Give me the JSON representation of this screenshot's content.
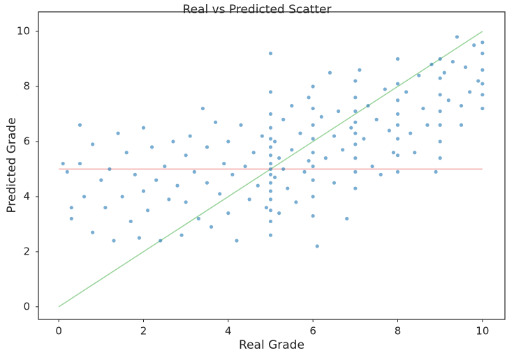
{
  "chart_data": {
    "type": "scatter",
    "title": "Real vs Predicted Scatter",
    "x_label": "Real Grade",
    "y_label": "Predicted Grade",
    "xlim": [
      -0.48,
      10.53
    ],
    "ylim": [
      -0.46,
      10.71
    ],
    "xticks": [
      0,
      2,
      4,
      6,
      8,
      10
    ],
    "yticks": [
      0,
      2,
      4,
      6,
      8,
      10
    ],
    "points": {
      "color": "#1f77b4",
      "x": [
        0.1,
        0.2,
        0.3,
        0.3,
        0.5,
        0.5,
        0.6,
        0.8,
        0.8,
        1.0,
        1.1,
        1.2,
        1.3,
        1.4,
        1.5,
        1.6,
        1.7,
        1.8,
        1.9,
        2.0,
        2.0,
        2.1,
        2.2,
        2.3,
        2.4,
        2.5,
        2.6,
        2.7,
        2.8,
        2.9,
        3.0,
        3.0,
        3.1,
        3.2,
        3.3,
        3.4,
        3.5,
        3.5,
        3.6,
        3.7,
        3.8,
        3.9,
        4.0,
        4.0,
        4.1,
        4.2,
        4.3,
        4.4,
        4.5,
        4.6,
        4.7,
        4.8,
        4.9,
        5,
        5,
        5,
        5,
        5,
        5,
        5,
        5,
        5,
        5,
        5,
        5,
        5,
        5,
        5,
        5,
        5.1,
        5.1,
        5.2,
        5.2,
        5.3,
        5.3,
        5.4,
        5.5,
        5.5,
        5.6,
        5.7,
        5.8,
        5.9,
        5.9,
        6,
        6,
        6,
        6,
        6,
        6,
        6,
        6,
        6,
        6.1,
        6.2,
        6.3,
        6.4,
        6.5,
        6.5,
        6.6,
        6.7,
        6.8,
        6.9,
        7,
        7,
        7,
        7,
        7,
        7,
        7,
        7,
        7,
        7.1,
        7.2,
        7.3,
        7.4,
        7.5,
        7.6,
        7.7,
        7.8,
        7.9,
        8,
        8,
        8,
        8,
        8,
        8,
        8,
        8,
        8.2,
        8.3,
        8.4,
        8.5,
        8.6,
        8.7,
        8.8,
        8.9,
        9,
        9,
        9,
        9,
        9,
        9,
        9,
        9.1,
        9.2,
        9.3,
        9.4,
        9.5,
        9.5,
        9.6,
        9.7,
        9.8,
        9.9,
        10,
        10,
        10,
        10,
        10,
        10
      ],
      "values": [
        5.2,
        4.9,
        3.6,
        3.2,
        6.6,
        5.2,
        4.0,
        2.7,
        5.9,
        4.6,
        3.6,
        5.0,
        2.4,
        6.3,
        4.0,
        5.6,
        3.1,
        4.8,
        2.5,
        6.5,
        4.2,
        3.5,
        5.8,
        4.6,
        2.4,
        5.1,
        3.9,
        6.0,
        4.4,
        2.6,
        5.5,
        3.8,
        6.2,
        4.9,
        3.2,
        7.2,
        4.5,
        5.8,
        2.9,
        6.7,
        4.1,
        5.2,
        3.4,
        6.0,
        4.8,
        2.4,
        6.6,
        5.1,
        3.9,
        5.6,
        4.4,
        6.2,
        3.6,
        9.2,
        7.8,
        7.0,
        6.5,
        6.1,
        5.8,
        5.5,
        5.2,
        5.0,
        4.8,
        4.5,
        4.2,
        3.9,
        3.5,
        3.1,
        2.6,
        6.0,
        4.7,
        5.4,
        3.4,
        6.8,
        5.0,
        4.3,
        7.3,
        5.7,
        3.8,
        6.3,
        4.9,
        7.6,
        5.3,
        8.0,
        7.2,
        6.6,
        6.1,
        5.6,
        5.1,
        4.6,
        4.0,
        3.3,
        2.2,
        6.9,
        5.4,
        8.5,
        6.2,
        4.5,
        7.1,
        5.7,
        3.2,
        6.5,
        8.2,
        7.6,
        7.1,
        6.7,
        6.3,
        5.9,
        5.4,
        4.9,
        4.3,
        8.6,
        6.1,
        7.3,
        5.1,
        6.8,
        4.8,
        7.9,
        6.4,
        5.6,
        9.0,
        8.1,
        7.5,
        7.0,
        6.6,
        6.1,
        5.5,
        4.9,
        7.8,
        6.3,
        5.6,
        8.4,
        7.2,
        6.6,
        8.8,
        4.9,
        9.0,
        8.3,
        7.7,
        7.1,
        6.6,
        6.0,
        5.4,
        8.5,
        7.5,
        8.9,
        9.8,
        7.3,
        6.6,
        8.7,
        7.8,
        9.5,
        8.2,
        9.6,
        9.2,
        8.6,
        8.1,
        7.7,
        7.2
      ]
    },
    "reference_lines": [
      {
        "color": "#98d39a",
        "x": [
          0,
          10
        ],
        "values": [
          0,
          10
        ]
      },
      {
        "color": "#f4a7a7",
        "x": [
          0,
          10
        ],
        "values": [
          5,
          5
        ]
      }
    ]
  }
}
